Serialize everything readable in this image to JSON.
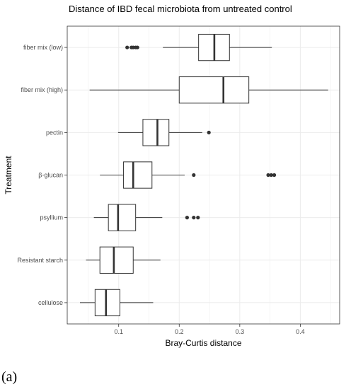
{
  "panel_label": "(a)",
  "chart_data": {
    "type": "boxplot",
    "orientation": "horizontal",
    "title": "Distance of IBD fecal microbiota from untreated control",
    "xlabel": "Bray-Curtis distance",
    "ylabel": "Treatment",
    "xlim": [
      0.015,
      0.465
    ],
    "xticks": [
      0.1,
      0.2,
      0.3,
      0.4
    ],
    "xtick_labels": [
      "0.1",
      "0.2",
      "0.3",
      "0.4"
    ],
    "grid": true,
    "legend": false,
    "colors": {
      "panel_bg": "#ffffff",
      "grid": "#ebebeb",
      "border": "#333333",
      "box": "#333333",
      "outlier": "#333333"
    },
    "categories": [
      "fiber mix (low)",
      "fiber mix (high)",
      "pectin",
      "β-glucan",
      "psyllium",
      "Resistant starch",
      "cellulose"
    ],
    "boxes": [
      {
        "category": "fiber mix (low)",
        "whisker_low": 0.173,
        "q1": 0.232,
        "median": 0.258,
        "q3": 0.283,
        "whisker_high": 0.353,
        "outliers": [
          0.114,
          0.121,
          0.124,
          0.128,
          0.131
        ]
      },
      {
        "category": "fiber mix (high)",
        "whisker_low": 0.052,
        "q1": 0.2,
        "median": 0.273,
        "q3": 0.315,
        "whisker_high": 0.446,
        "outliers": []
      },
      {
        "category": "pectin",
        "whisker_low": 0.099,
        "q1": 0.14,
        "median": 0.164,
        "q3": 0.183,
        "whisker_high": 0.238,
        "outliers": [
          0.249
        ]
      },
      {
        "category": "β-glucan",
        "whisker_low": 0.069,
        "q1": 0.108,
        "median": 0.124,
        "q3": 0.155,
        "whisker_high": 0.209,
        "outliers": [
          0.224,
          0.347,
          0.352,
          0.357
        ]
      },
      {
        "category": "psyllium",
        "whisker_low": 0.059,
        "q1": 0.083,
        "median": 0.099,
        "q3": 0.128,
        "whisker_high": 0.172,
        "outliers": [
          0.213,
          0.224,
          0.231
        ]
      },
      {
        "category": "Resistant starch",
        "whisker_low": 0.046,
        "q1": 0.069,
        "median": 0.092,
        "q3": 0.124,
        "whisker_high": 0.169,
        "outliers": []
      },
      {
        "category": "cellulose",
        "whisker_low": 0.036,
        "q1": 0.061,
        "median": 0.079,
        "q3": 0.102,
        "whisker_high": 0.157,
        "outliers": []
      }
    ]
  }
}
